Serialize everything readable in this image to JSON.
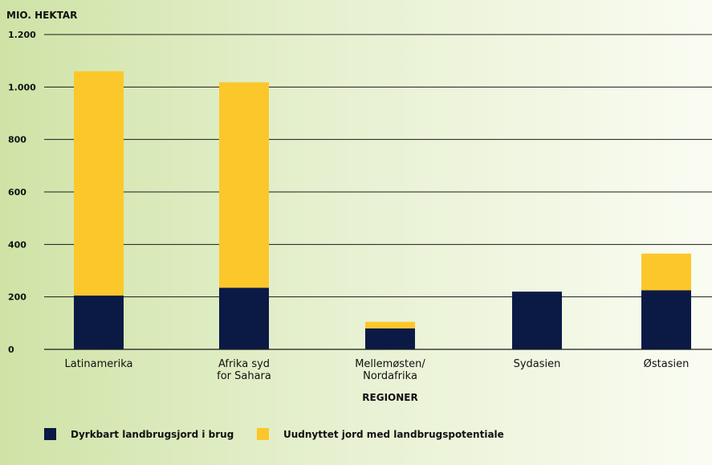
{
  "chart_data": {
    "type": "bar",
    "stacked": true,
    "ylabel": "MIO. HEKTAR",
    "xlabel": "REGIONER",
    "ylim": [
      0,
      1200
    ],
    "yticks": [
      0,
      200,
      400,
      600,
      800,
      1000,
      1200
    ],
    "ytick_labels": [
      "0",
      "200",
      "400",
      "600",
      "800",
      "1.000",
      "1.200"
    ],
    "categories": [
      [
        "Latinamerika"
      ],
      [
        "Afrika syd",
        "for Sahara"
      ],
      [
        "Mellemøsten/",
        "Nordafrika"
      ],
      [
        "Sydasien"
      ],
      [
        "Østasien"
      ]
    ],
    "series": [
      {
        "name": "Dyrkbart landbrugsjord i brug",
        "color": "#0a1a45",
        "values": [
          205,
          235,
          80,
          220,
          225
        ]
      },
      {
        "name": "Uudnyttet jord med landbrugspotentiale",
        "color": "#fcc72a",
        "values": [
          855,
          783,
          25,
          0,
          140
        ]
      }
    ],
    "grid": true,
    "legend": "bottom-left"
  }
}
